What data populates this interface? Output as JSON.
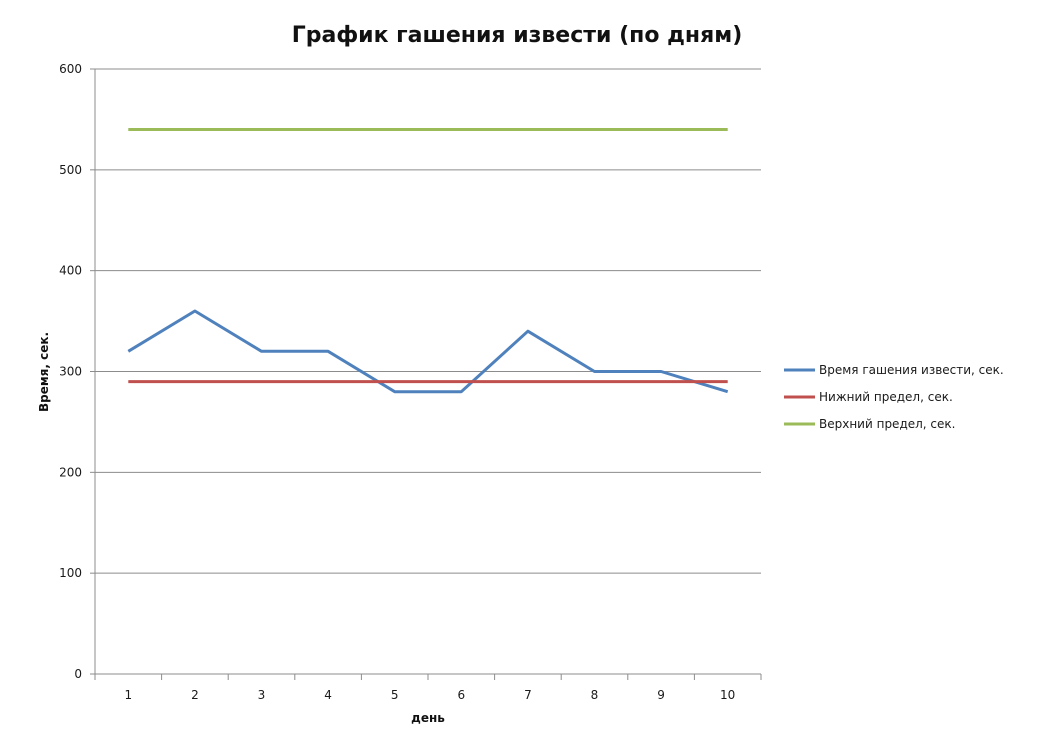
{
  "chart_data": {
    "type": "line",
    "title": "График гашения извести (по дням)",
    "xlabel": "день",
    "ylabel": "Время, сек.",
    "categories": [
      "1",
      "2",
      "3",
      "4",
      "5",
      "6",
      "7",
      "8",
      "9",
      "10"
    ],
    "ylim": [
      0,
      600
    ],
    "yticks": [
      0,
      100,
      200,
      300,
      400,
      500,
      600
    ],
    "grid": true,
    "legend_position": "right",
    "series": [
      {
        "name": "Время гашения извести, сек.",
        "color": "#4f81bd",
        "values": [
          320,
          360,
          320,
          320,
          280,
          280,
          340,
          300,
          300,
          280
        ]
      },
      {
        "name": "Нижний предел, сек.",
        "color": "#c0504d",
        "values": [
          290,
          290,
          290,
          290,
          290,
          290,
          290,
          290,
          290,
          290
        ]
      },
      {
        "name": "Верхний предел, сек.",
        "color": "#9bbb59",
        "values": [
          540,
          540,
          540,
          540,
          540,
          540,
          540,
          540,
          540,
          540
        ]
      }
    ]
  }
}
